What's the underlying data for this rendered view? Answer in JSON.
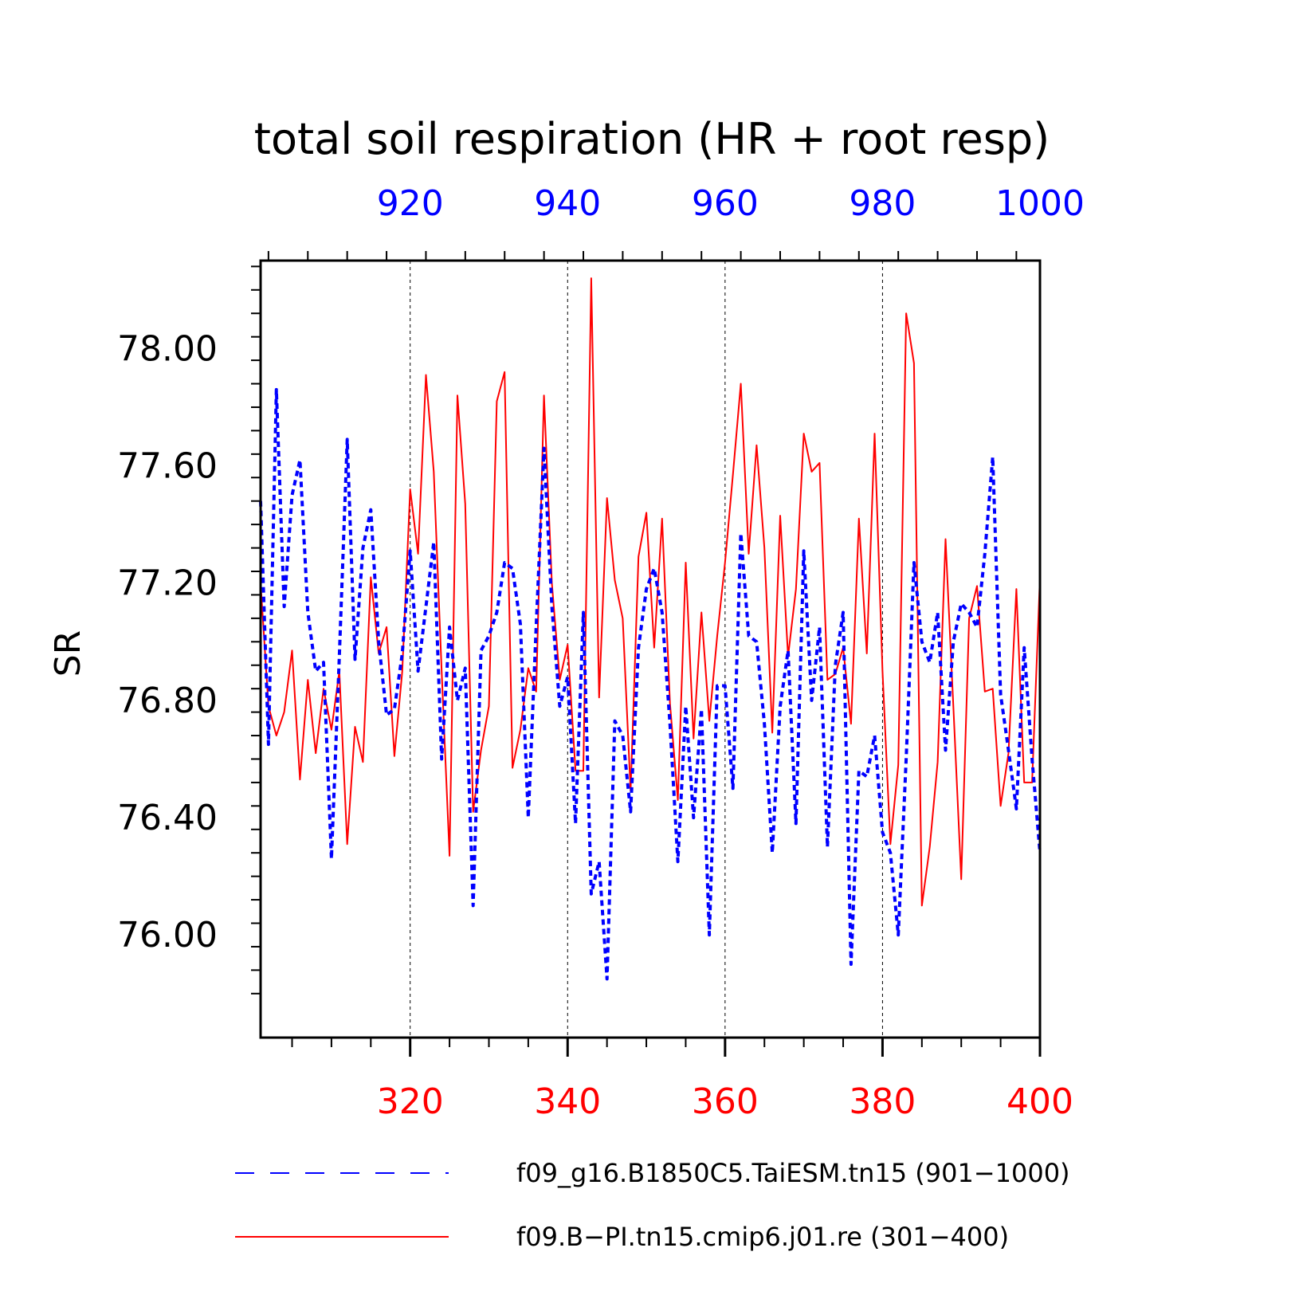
{
  "chart_data": {
    "type": "line",
    "title": "total soil respiration (HR + root resp)",
    "ylabel": "SR",
    "ylim": [
      75.65,
      78.3
    ],
    "yticks": [
      76.0,
      76.4,
      76.8,
      77.2,
      77.6,
      78.0
    ],
    "ytick_labels": [
      "76.00",
      "76.40",
      "76.80",
      "77.20",
      "77.60",
      "78.00"
    ],
    "grid": "vertical dashed lines at labeled x ticks",
    "legend_position": "bottom",
    "series": [
      {
        "name": "f09_g16.B1850C5.TaiESM.tn15 (901−1000)",
        "color": "#0000ff",
        "dash": "dashed",
        "axis": "top",
        "xlim": [
          901,
          1000
        ],
        "xticks": [
          920,
          940,
          960,
          980,
          1000
        ],
        "x_start": 901,
        "values": [
          77.48,
          76.65,
          77.86,
          77.12,
          77.5,
          77.62,
          77.1,
          76.9,
          76.93,
          76.26,
          76.95,
          77.69,
          76.94,
          77.32,
          77.45,
          77.0,
          76.75,
          76.77,
          76.96,
          77.31,
          76.9,
          77.12,
          77.34,
          76.6,
          77.05,
          76.8,
          76.91,
          76.1,
          76.97,
          77.02,
          77.1,
          77.27,
          77.25,
          77.06,
          76.4,
          77.05,
          77.66,
          77.12,
          76.78,
          76.88,
          76.38,
          77.1,
          76.14,
          76.25,
          75.85,
          76.73,
          76.68,
          76.42,
          76.98,
          77.18,
          77.25,
          77.1,
          76.72,
          76.25,
          76.78,
          76.4,
          76.77,
          76.0,
          76.85,
          76.85,
          76.5,
          77.37,
          77.02,
          77.0,
          76.72,
          76.28,
          76.78,
          76.97,
          76.38,
          77.31,
          76.8,
          77.05,
          76.3,
          76.92,
          77.1,
          75.9,
          76.56,
          76.54,
          76.68,
          76.35,
          76.28,
          76.0,
          76.6,
          77.27,
          77.0,
          76.93,
          77.1,
          76.63,
          77.0,
          77.13,
          77.1,
          77.05,
          77.3,
          77.63,
          76.82,
          76.63,
          76.43,
          76.98,
          76.6,
          76.28
        ]
      },
      {
        "name": "f09.B−PI.tn15.cmip6.j01.re (301−400)",
        "color": "#ff0000",
        "dash": "solid",
        "axis": "bottom",
        "xlim": [
          301,
          400
        ],
        "xticks": [
          320,
          340,
          360,
          380,
          400
        ],
        "x_start": 301,
        "values": [
          77.2,
          76.78,
          76.68,
          76.76,
          76.97,
          76.53,
          76.87,
          76.62,
          76.84,
          76.7,
          76.9,
          76.31,
          76.71,
          76.59,
          77.22,
          76.96,
          77.05,
          76.61,
          76.9,
          77.52,
          77.3,
          77.91,
          77.58,
          76.9,
          76.27,
          77.84,
          77.47,
          76.42,
          76.63,
          76.78,
          77.82,
          77.92,
          76.57,
          76.7,
          76.91,
          76.83,
          77.84,
          77.2,
          76.87,
          76.99,
          76.56,
          76.56,
          78.24,
          76.81,
          77.49,
          77.21,
          77.08,
          76.49,
          77.29,
          77.44,
          76.98,
          77.42,
          76.79,
          76.46,
          77.27,
          76.67,
          77.1,
          76.73,
          77.02,
          77.27,
          77.57,
          77.88,
          77.3,
          77.67,
          77.32,
          76.69,
          77.43,
          76.95,
          77.18,
          77.71,
          77.58,
          77.61,
          76.87,
          76.89,
          76.98,
          76.72,
          77.42,
          76.96,
          77.71,
          76.9,
          76.31,
          76.58,
          78.12,
          77.95,
          76.1,
          76.3,
          76.59,
          77.35,
          76.78,
          76.19,
          77.08,
          77.19,
          76.83,
          76.84,
          76.44,
          76.62,
          77.18,
          76.52,
          76.52,
          77.22
        ]
      }
    ]
  }
}
